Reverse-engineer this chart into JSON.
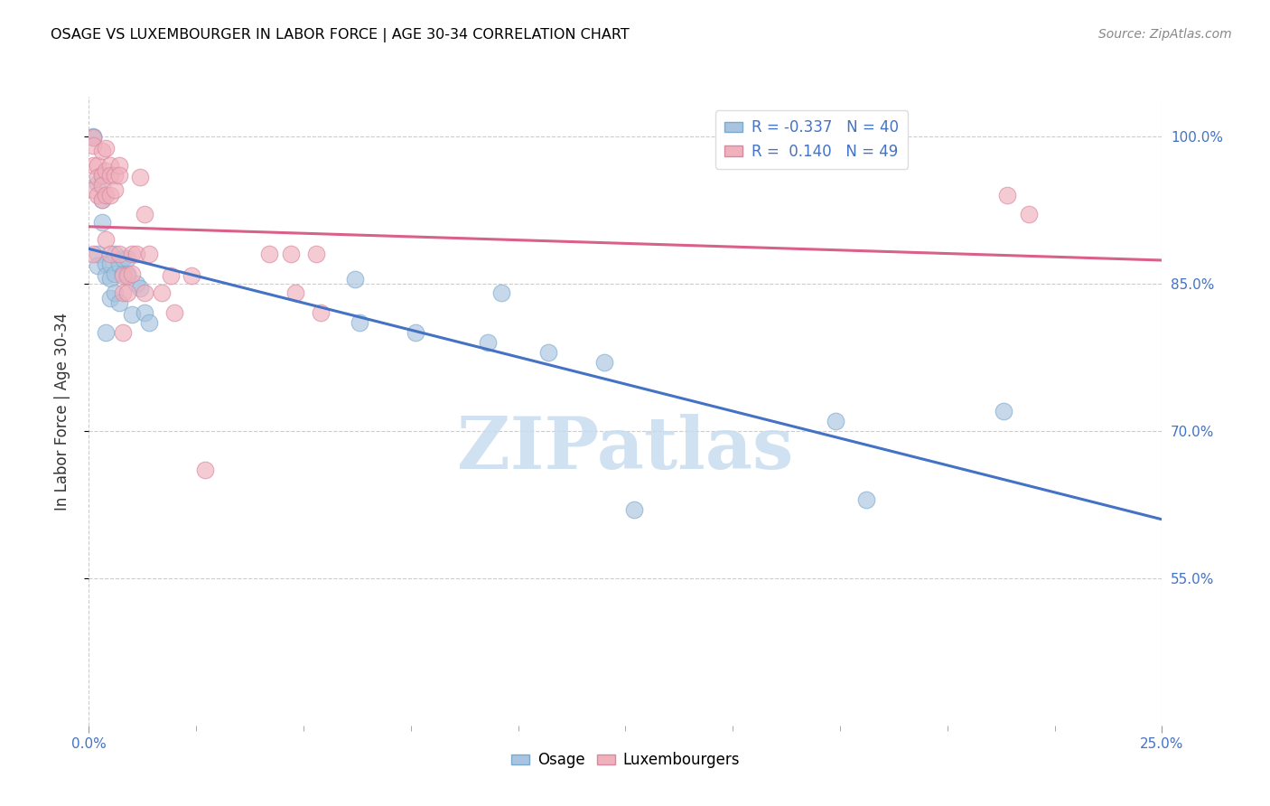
{
  "title": "OSAGE VS LUXEMBOURGER IN LABOR FORCE | AGE 30-34 CORRELATION CHART",
  "source": "Source: ZipAtlas.com",
  "ylabel": "In Labor Force | Age 30-34",
  "xlim": [
    0.0,
    0.25
  ],
  "ylim": [
    0.4,
    1.04
  ],
  "plot_ylim": [
    0.4,
    1.04
  ],
  "xtick_positions": [
    0.0,
    0.25
  ],
  "xticklabels": [
    "0.0%",
    "25.0%"
  ],
  "ytick_positions": [
    0.55,
    0.7,
    0.85,
    1.0
  ],
  "yticklabels": [
    "55.0%",
    "70.0%",
    "85.0%",
    "100.0%"
  ],
  "osage_color": "#a8c4e0",
  "osage_edge_color": "#7aaace",
  "luxembourger_color": "#f0b0bc",
  "luxembourger_edge_color": "#d888a0",
  "osage_line_color": "#4472c4",
  "luxembourger_line_color": "#d9608a",
  "R_osage": -0.337,
  "N_osage": 40,
  "R_luxembourger": 0.14,
  "N_luxembourger": 49,
  "watermark_text": "ZIPatlas",
  "watermark_color": "#c8ddf0",
  "osage_x": [
    0.001,
    0.001,
    0.002,
    0.002,
    0.002,
    0.003,
    0.003,
    0.003,
    0.003,
    0.004,
    0.004,
    0.004,
    0.005,
    0.005,
    0.005,
    0.006,
    0.006,
    0.006,
    0.007,
    0.007,
    0.008,
    0.008,
    0.009,
    0.009,
    0.01,
    0.011,
    0.012,
    0.013,
    0.014,
    0.062,
    0.063,
    0.076,
    0.093,
    0.096,
    0.107,
    0.12,
    0.127,
    0.174,
    0.181,
    0.213
  ],
  "osage_y": [
    1.0,
    0.999,
    0.952,
    0.88,
    0.868,
    0.96,
    0.96,
    0.935,
    0.912,
    0.87,
    0.858,
    0.8,
    0.87,
    0.855,
    0.835,
    0.88,
    0.86,
    0.84,
    0.87,
    0.83,
    0.875,
    0.86,
    0.875,
    0.86,
    0.818,
    0.85,
    0.845,
    0.82,
    0.81,
    0.854,
    0.81,
    0.8,
    0.79,
    0.84,
    0.78,
    0.77,
    0.62,
    0.71,
    0.63,
    0.72
  ],
  "lux_x": [
    0.001,
    0.001,
    0.001,
    0.001,
    0.001,
    0.002,
    0.002,
    0.002,
    0.003,
    0.003,
    0.003,
    0.003,
    0.004,
    0.004,
    0.004,
    0.004,
    0.005,
    0.005,
    0.005,
    0.005,
    0.006,
    0.006,
    0.007,
    0.007,
    0.007,
    0.008,
    0.008,
    0.008,
    0.009,
    0.009,
    0.01,
    0.01,
    0.011,
    0.012,
    0.013,
    0.013,
    0.014,
    0.017,
    0.019,
    0.02,
    0.024,
    0.027,
    0.042,
    0.047,
    0.048,
    0.053,
    0.054,
    0.214,
    0.219
  ],
  "lux_y": [
    0.999,
    0.99,
    0.97,
    0.945,
    0.88,
    0.97,
    0.958,
    0.94,
    0.985,
    0.96,
    0.95,
    0.935,
    0.988,
    0.965,
    0.94,
    0.895,
    0.97,
    0.96,
    0.94,
    0.88,
    0.96,
    0.945,
    0.97,
    0.96,
    0.88,
    0.858,
    0.84,
    0.8,
    0.858,
    0.84,
    0.88,
    0.86,
    0.88,
    0.958,
    0.92,
    0.84,
    0.88,
    0.84,
    0.858,
    0.82,
    0.858,
    0.66,
    0.88,
    0.88,
    0.84,
    0.88,
    0.82,
    0.94,
    0.92
  ],
  "scatter_size": 180,
  "scatter_alpha": 0.65,
  "grid_color": "#cccccc",
  "grid_linestyle": "--",
  "tick_label_color": "#4472c4",
  "ylabel_color": "#333333",
  "title_fontsize": 11.5,
  "tick_fontsize": 11,
  "ylabel_fontsize": 12,
  "source_fontsize": 10,
  "legend_fontsize": 12
}
